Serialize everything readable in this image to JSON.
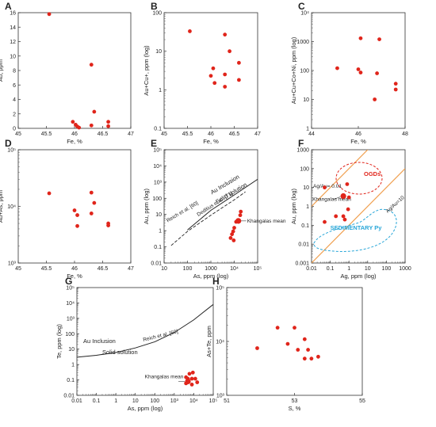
{
  "style": {
    "point_color": "#e0251b",
    "ogd_color": "#e0251b",
    "sed_color": "#28a6d8",
    "ratio_line_color": "#f0a050"
  },
  "chart_data": [
    {
      "panel": "A",
      "type": "scatter",
      "xlabel": "Fe, %",
      "ylabel": "Au, ppm",
      "xscale": "linear",
      "yscale": "linear",
      "xlim": [
        45,
        47
      ],
      "ylim": [
        0,
        16
      ],
      "xticks": [
        "45",
        "45.5",
        "46",
        "46.5",
        "47"
      ],
      "yticks": [
        "0",
        "2",
        "4",
        "6",
        "8",
        "10",
        "12",
        "14",
        "16"
      ],
      "points": [
        [
          45.55,
          15.8
        ],
        [
          46.3,
          8.8
        ],
        [
          46.35,
          2.3
        ],
        [
          45.97,
          0.9
        ],
        [
          46.02,
          0.5
        ],
        [
          46.05,
          0.25
        ],
        [
          46.08,
          0.1
        ],
        [
          46.3,
          0.4
        ],
        [
          46.6,
          0.9
        ],
        [
          46.6,
          0.3
        ]
      ]
    },
    {
      "panel": "B",
      "type": "scatter",
      "xlabel": "Fe, %",
      "ylabel": "Au+Cu+, ppm (log)",
      "xscale": "linear",
      "yscale": "log",
      "xlim": [
        45,
        47
      ],
      "ylim": [
        0.1,
        100
      ],
      "xticks": [
        "45",
        "45.5",
        "46",
        "46.5",
        "47"
      ],
      "yticks": [
        "0.1",
        "1",
        "10",
        "100"
      ],
      "points": [
        [
          45.55,
          33
        ],
        [
          46.3,
          27
        ],
        [
          46.4,
          10
        ],
        [
          46.6,
          5
        ],
        [
          46.05,
          3.6
        ],
        [
          46.0,
          2.3
        ],
        [
          46.3,
          2.5
        ],
        [
          46.6,
          1.8
        ],
        [
          46.08,
          1.5
        ],
        [
          46.3,
          1.2
        ]
      ]
    },
    {
      "panel": "C",
      "type": "scatter",
      "xlabel": "Fe, %",
      "ylabel": "Au+Cu+Co+Ni, ppm (log)",
      "xscale": "linear",
      "yscale": "log",
      "xlim": [
        44,
        48
      ],
      "ylim": [
        1,
        10000
      ],
      "xticks": [
        "44",
        "46",
        "48"
      ],
      "yticks": [
        "1",
        "10",
        "100",
        "1000",
        "10⁴"
      ],
      "points": [
        [
          45.1,
          120
        ],
        [
          46.1,
          1300
        ],
        [
          46.9,
          1200
        ],
        [
          46.0,
          110
        ],
        [
          46.1,
          85
        ],
        [
          46.8,
          80
        ],
        [
          46.7,
          10
        ],
        [
          47.6,
          35
        ],
        [
          47.6,
          22
        ]
      ]
    },
    {
      "panel": "D",
      "type": "scatter",
      "xlabel": "Fe, %",
      "ylabel": "Au+As, ppm",
      "xscale": "linear",
      "yscale": "log",
      "xlim": [
        45,
        47
      ],
      "ylim": [
        1000,
        100000
      ],
      "xticks": [
        "45",
        "45.5",
        "46",
        "46.5",
        "47"
      ],
      "yticks": [
        "10³",
        "10⁴",
        "10⁵"
      ],
      "points": [
        [
          45.55,
          17000
        ],
        [
          46.3,
          17500
        ],
        [
          46.0,
          8500
        ],
        [
          46.05,
          7000
        ],
        [
          46.35,
          11500
        ],
        [
          46.3,
          7500
        ],
        [
          46.05,
          4500
        ],
        [
          46.6,
          5000
        ],
        [
          46.6,
          4600
        ]
      ]
    },
    {
      "panel": "E",
      "type": "scatter",
      "xlabel": "As, ppm (log)",
      "ylabel": "Au, ppm (log)",
      "xscale": "log",
      "yscale": "log",
      "xlim": [
        10,
        100000
      ],
      "ylim": [
        0.01,
        100000
      ],
      "xticks": [
        "10",
        "100",
        "1000",
        "10⁴",
        "10⁵"
      ],
      "yticks": [
        "0.01",
        "0.1",
        "1",
        "10",
        "100",
        "10³",
        "10⁴",
        "10⁵"
      ],
      "curve_labels": [
        "Au Inclusion",
        "Solid solution",
        "Reich et al. [60]",
        "Deditius et al. [71]"
      ],
      "annotation": "Khangalas mean",
      "reich_line": [
        [
          100,
          1.1
        ],
        [
          1000,
          18
        ],
        [
          10000,
          160
        ],
        [
          100000,
          1500
        ]
      ],
      "deditius_line": [
        [
          20,
          0.12
        ],
        [
          100,
          0.9
        ],
        [
          1000,
          9
        ],
        [
          10000,
          80
        ],
        [
          30000,
          250
        ]
      ],
      "mean": [
        15000,
        4
      ],
      "points": [
        [
          19000,
          15
        ],
        [
          18000,
          9
        ],
        [
          15000,
          4
        ],
        [
          12000,
          3.5
        ],
        [
          10000,
          1.5
        ],
        [
          9000,
          0.9
        ],
        [
          8000,
          0.6
        ],
        [
          7000,
          0.35
        ],
        [
          9500,
          0.25
        ]
      ]
    },
    {
      "panel": "F",
      "type": "scatter",
      "xlabel": "Ag, ppm (log)",
      "ylabel": "Au, ppm (log)",
      "xscale": "log",
      "yscale": "log",
      "xlim": [
        0.01,
        1000
      ],
      "ylim": [
        0.001,
        1000
      ],
      "xticks": [
        "0.01",
        "0.1",
        "1",
        "10",
        "100",
        "1000"
      ],
      "yticks": [
        "0.001",
        "0.01",
        "0.1",
        "1",
        "10",
        "100",
        "1000"
      ],
      "field_labels": [
        "OGDs",
        "SEDIMENTARY Py"
      ],
      "ratio_labels": [
        "Ag/Au= 0.01",
        "Ag/Au=10"
      ],
      "annotation": "Khangalas mean",
      "mean": [
        0.5,
        3.5
      ],
      "points": [
        [
          0.05,
          10
        ],
        [
          0.8,
          15
        ],
        [
          1.0,
          3
        ],
        [
          0.9,
          0.7
        ],
        [
          0.2,
          0.3
        ],
        [
          0.5,
          0.3
        ],
        [
          0.6,
          0.2
        ],
        [
          0.05,
          0.15
        ]
      ]
    },
    {
      "panel": "G",
      "type": "scatter",
      "xlabel": "As, ppm (log)",
      "ylabel": "Te, ppm (log)",
      "xscale": "log",
      "yscale": "log",
      "xlim": [
        0.01,
        100000
      ],
      "ylim": [
        0.01,
        100000
      ],
      "xticks": [
        "0.01",
        "0.1",
        "1",
        "10",
        "100",
        "10³",
        "10⁴",
        "10⁵"
      ],
      "yticks": [
        "0.01",
        "0.1",
        "1",
        "10",
        "100",
        "10³",
        "10⁴",
        "10⁵"
      ],
      "curve_labels": [
        "Au Inclusion",
        "Solid solution",
        "Reich et al. [60]"
      ],
      "annotation": "Khangalas mean",
      "reich_curve": [
        [
          0.01,
          3
        ],
        [
          0.1,
          4
        ],
        [
          1,
          6
        ],
        [
          10,
          12
        ],
        [
          100,
          30
        ],
        [
          1000,
          120
        ],
        [
          10000,
          800
        ],
        [
          100000,
          8000
        ]
      ],
      "mean": [
        5000,
        0.08
      ],
      "points": [
        [
          6000,
          0.25
        ],
        [
          9000,
          0.3
        ],
        [
          4000,
          0.15
        ],
        [
          5000,
          0.12
        ],
        [
          8000,
          0.12
        ],
        [
          12000,
          0.12
        ],
        [
          5000,
          0.08
        ],
        [
          4000,
          0.06
        ],
        [
          8000,
          0.05
        ],
        [
          15000,
          0.07
        ]
      ]
    },
    {
      "panel": "H",
      "type": "scatter",
      "xlabel": "S, %",
      "ylabel": "As+Te, ppm",
      "xscale": "linear",
      "yscale": "log",
      "xlim": [
        51,
        55
      ],
      "ylim": [
        1000,
        100000
      ],
      "xticks": [
        "51",
        "53",
        "55"
      ],
      "yticks": [
        "10³",
        "10⁴",
        "10⁵"
      ],
      "points": [
        [
          52.5,
          18000
        ],
        [
          53.0,
          18000
        ],
        [
          51.9,
          7500
        ],
        [
          52.8,
          9000
        ],
        [
          53.3,
          11000
        ],
        [
          53.1,
          7000
        ],
        [
          53.4,
          7000
        ],
        [
          53.3,
          4800
        ],
        [
          53.5,
          4800
        ],
        [
          53.7,
          5200
        ]
      ]
    }
  ]
}
